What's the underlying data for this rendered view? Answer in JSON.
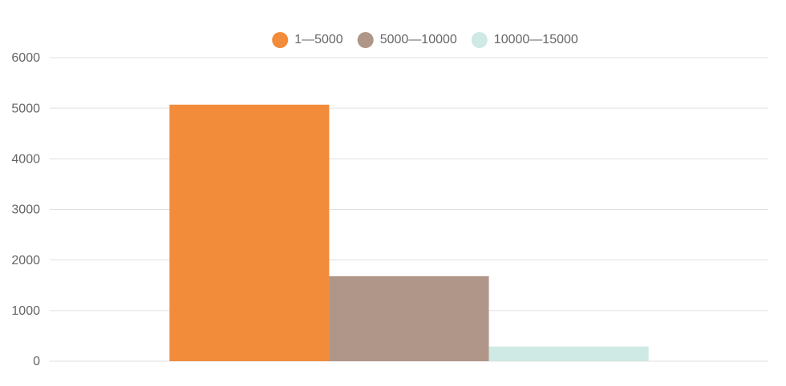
{
  "chart_data": {
    "type": "bar",
    "categories": [
      null
    ],
    "series": [
      {
        "name": "1—5000",
        "color": "#f28b3a",
        "values": [
          5070
        ]
      },
      {
        "name": "5000—10000",
        "color": "#b09689",
        "values": [
          1680
        ]
      },
      {
        "name": "10000—15000",
        "color": "#cfe9e4",
        "values": [
          290
        ]
      }
    ],
    "ylim": [
      0,
      6000
    ],
    "yticks": [
      0,
      1000,
      2000,
      3000,
      4000,
      5000,
      6000
    ],
    "grid": true,
    "legend": "top"
  }
}
